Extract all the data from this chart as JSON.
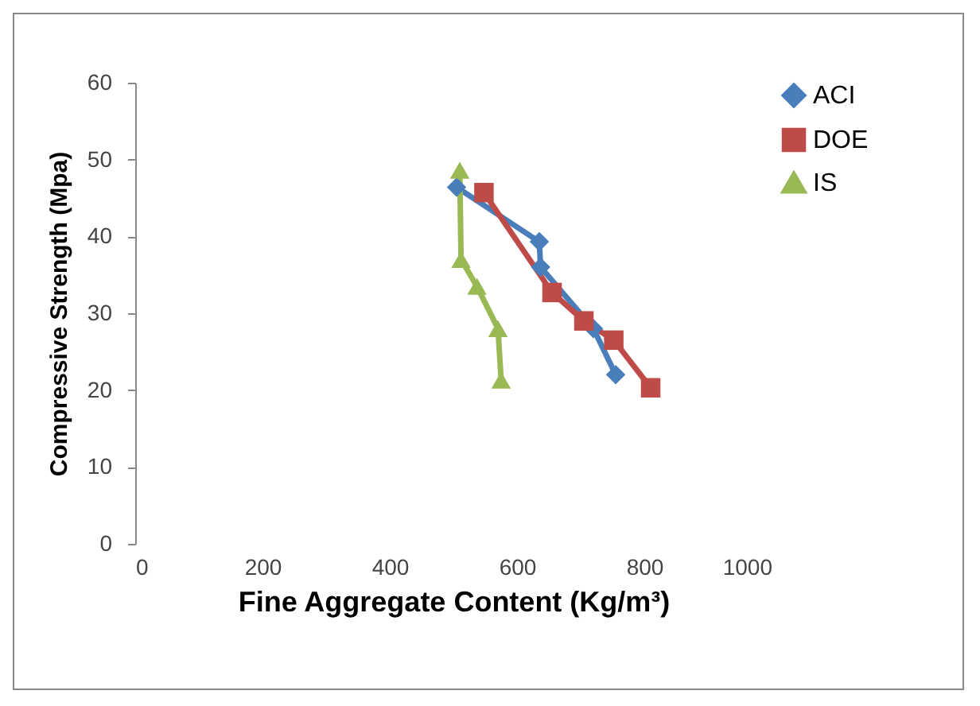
{
  "chart_data": {
    "type": "line",
    "xlabel": "Fine Aggregate Content (Kg/m³)",
    "ylabel": "Compressive Strength (Mpa)",
    "xlim": [
      0,
      1000
    ],
    "xticks": [
      0,
      200,
      400,
      600,
      800,
      1000
    ],
    "ylim": [
      0,
      60
    ],
    "yticks": [
      0,
      10,
      20,
      30,
      40,
      50,
      60
    ],
    "grid": false,
    "legend": "right",
    "series": [
      {
        "name": "ACI",
        "color": "#4a7ebb",
        "marker": "diamond",
        "x": [
          505,
          635,
          637,
          720,
          755
        ],
        "values": [
          46.4,
          39.3,
          36,
          28,
          22
        ]
      },
      {
        "name": "DOE",
        "color": "#be4b48",
        "marker": "square",
        "x": [
          548,
          655,
          705,
          752,
          810
        ],
        "values": [
          45.7,
          32.7,
          29,
          26.5,
          20.3
        ]
      },
      {
        "name": "IS",
        "color": "#98b954",
        "marker": "triangle",
        "x": [
          510,
          512,
          537,
          570,
          575
        ],
        "values": [
          48.6,
          37,
          33.5,
          28,
          21.3
        ]
      }
    ]
  }
}
